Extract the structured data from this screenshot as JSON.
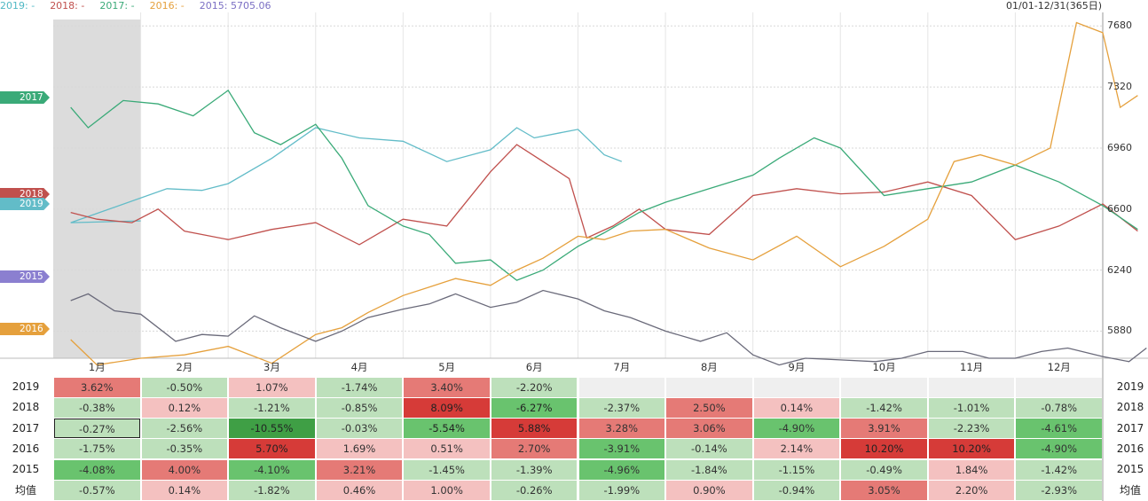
{
  "header": {
    "legend": [
      {
        "label": "2019: -",
        "color": "#4fb8c4"
      },
      {
        "label": "2018: -",
        "color": "#c0504d"
      },
      {
        "label": "2017: -",
        "color": "#3aaa78"
      },
      {
        "label": "2016: -",
        "color": "#e5a03c"
      },
      {
        "label": "2015: 5705.06",
        "color": "#7b6fc4"
      }
    ],
    "range": "01/01-12/31(365日)"
  },
  "chart_data": {
    "type": "line",
    "ylim": [
      5720,
      7760
    ],
    "yticks": [
      "7680",
      "7320",
      "6960",
      "6600",
      "6240",
      "5880"
    ],
    "ytick_values": [
      7680,
      7320,
      6960,
      6600,
      6240,
      5880
    ],
    "xticks": [
      "1月",
      "2月",
      "3月",
      "4月",
      "5月",
      "6月",
      "7月",
      "8月",
      "9月",
      "10月",
      "11月",
      "12月"
    ],
    "series": [
      {
        "name": "2019",
        "color": "#62bcc8",
        "x": [
          1,
          0.2,
          1.3,
          1.7,
          2.0,
          2.5,
          3.0,
          3.5,
          4.0,
          4.5,
          5.0,
          5.3,
          5.5,
          5.8,
          6.0,
          6.3,
          6.5
        ],
        "y": [
          6530,
          6520,
          6720,
          6710,
          6750,
          6900,
          7080,
          7020,
          7000,
          6880,
          6950,
          7080,
          7020,
          7050,
          7070,
          6920,
          6880
        ]
      },
      {
        "name": "2018",
        "color": "#c0504d",
        "x": [
          0.2,
          0.5,
          0.9,
          1.2,
          1.5,
          2.0,
          2.5,
          3.0,
          3.5,
          4.0,
          4.5,
          5.0,
          5.3,
          5.6,
          5.9,
          6.1,
          6.4,
          6.7,
          7.0,
          7.5,
          8.0,
          8.5,
          9.0,
          9.5,
          10.0,
          10.5,
          11.0,
          11.5,
          12.0,
          12.4
        ],
        "y": [
          6580,
          6540,
          6520,
          6600,
          6470,
          6420,
          6480,
          6520,
          6390,
          6540,
          6500,
          6820,
          6980,
          6880,
          6780,
          6430,
          6500,
          6600,
          6480,
          6450,
          6680,
          6720,
          6690,
          6700,
          6760,
          6680,
          6420,
          6500,
          6630,
          6470
        ]
      },
      {
        "name": "2017",
        "color": "#3aaa78",
        "x": [
          0.2,
          0.4,
          0.8,
          1.2,
          1.6,
          2.0,
          2.3,
          2.6,
          3.0,
          3.3,
          3.6,
          4.0,
          4.3,
          4.6,
          5.0,
          5.3,
          5.6,
          6.0,
          6.3,
          6.7,
          7.0,
          7.5,
          8.0,
          8.3,
          8.7,
          9.0,
          9.5,
          10.0,
          10.5,
          11.0,
          11.5,
          12.0,
          12.4
        ],
        "y": [
          7200,
          7080,
          7240,
          7220,
          7150,
          7300,
          7050,
          6980,
          7100,
          6900,
          6620,
          6500,
          6450,
          6280,
          6300,
          6180,
          6240,
          6380,
          6460,
          6580,
          6640,
          6720,
          6800,
          6900,
          7020,
          6960,
          6680,
          6720,
          6760,
          6860,
          6760,
          6620,
          6480
        ]
      },
      {
        "name": "2016",
        "color": "#e5a03c",
        "x": [
          0.2,
          0.5,
          1.0,
          1.5,
          2.0,
          2.5,
          3.0,
          3.3,
          3.6,
          4.0,
          4.3,
          4.6,
          5.0,
          5.3,
          5.6,
          6.0,
          6.3,
          6.6,
          7.0,
          7.5,
          8.0,
          8.5,
          9.0,
          9.5,
          10.0,
          10.3,
          10.6,
          11.0,
          11.4,
          11.7,
          12.0,
          12.2,
          12.4
        ],
        "y": [
          5830,
          5680,
          5720,
          5740,
          5790,
          5690,
          5860,
          5900,
          5990,
          6090,
          6140,
          6190,
          6150,
          6240,
          6310,
          6440,
          6420,
          6470,
          6480,
          6370,
          6300,
          6440,
          6260,
          6380,
          6540,
          6880,
          6920,
          6860,
          6960,
          7700,
          7640,
          7200,
          7270
        ]
      },
      {
        "name": "2015",
        "color": "#6a6a7a",
        "x": [
          0.2,
          0.4,
          0.7,
          1.0,
          1.4,
          1.7,
          2.0,
          2.3,
          2.6,
          3.0,
          3.3,
          3.6,
          4.0,
          4.3,
          4.6,
          5.0,
          5.3,
          5.6,
          6.0,
          6.3,
          6.6,
          7.0,
          7.4,
          7.7,
          8.0,
          8.3,
          8.6,
          9.0,
          9.4,
          9.7,
          10.0,
          10.4,
          10.7,
          11.0,
          11.3,
          11.6,
          12.0,
          12.3,
          12.5
        ],
        "y": [
          6060,
          6100,
          6000,
          5980,
          5820,
          5860,
          5850,
          5970,
          5900,
          5820,
          5880,
          5960,
          6010,
          6040,
          6100,
          6020,
          6050,
          6120,
          6070,
          6000,
          5960,
          5880,
          5820,
          5870,
          5740,
          5680,
          5720,
          5710,
          5700,
          5720,
          5760,
          5760,
          5720,
          5720,
          5760,
          5780,
          5730,
          5700,
          5780
        ]
      }
    ],
    "series_colors_note": "line colors",
    "tags": [
      {
        "label": "2017",
        "color": "#3aaa78"
      },
      {
        "label": "2018",
        "color": "#c0504d"
      },
      {
        "label": "2019",
        "color": "#62bcc8"
      },
      {
        "label": "2015",
        "color": "#8b7fd0"
      },
      {
        "label": "2016",
        "color": "#e5a03c"
      }
    ]
  },
  "table": {
    "months": [
      "1月",
      "2月",
      "3月",
      "4月",
      "5月",
      "6月",
      "7月",
      "8月",
      "9月",
      "10月",
      "11月",
      "12月"
    ],
    "rows": [
      {
        "label": "2019",
        "values": [
          "3.62%",
          "-0.50%",
          "1.07%",
          "-1.74%",
          "3.40%",
          "-2.20%",
          "",
          "",
          "",
          "",
          "",
          ""
        ]
      },
      {
        "label": "2018",
        "values": [
          "-0.38%",
          "0.12%",
          "-1.21%",
          "-0.85%",
          "8.09%",
          "-6.27%",
          "-2.37%",
          "2.50%",
          "0.14%",
          "-1.42%",
          "-1.01%",
          "-0.78%"
        ]
      },
      {
        "label": "2017",
        "values": [
          "-0.27%",
          "-2.56%",
          "-10.55%",
          "-0.03%",
          "-5.54%",
          "5.88%",
          "3.28%",
          "3.06%",
          "-4.90%",
          "3.91%",
          "-2.23%",
          "-4.61%"
        ]
      },
      {
        "label": "2016",
        "values": [
          "-1.75%",
          "-0.35%",
          "5.70%",
          "1.69%",
          "0.51%",
          "2.70%",
          "-3.91%",
          "-0.14%",
          "2.14%",
          "10.20%",
          "10.20%",
          "-4.90%"
        ]
      },
      {
        "label": "2015",
        "values": [
          "-4.08%",
          "4.00%",
          "-4.10%",
          "3.21%",
          "-1.45%",
          "-1.39%",
          "-4.96%",
          "-1.84%",
          "-1.15%",
          "-0.49%",
          "1.84%",
          "-1.42%"
        ]
      },
      {
        "label": "均值",
        "values": [
          "-0.57%",
          "0.14%",
          "-1.82%",
          "0.46%",
          "1.00%",
          "-0.26%",
          "-1.99%",
          "0.90%",
          "-0.94%",
          "3.05%",
          "2.20%",
          "-2.93%"
        ]
      }
    ]
  }
}
